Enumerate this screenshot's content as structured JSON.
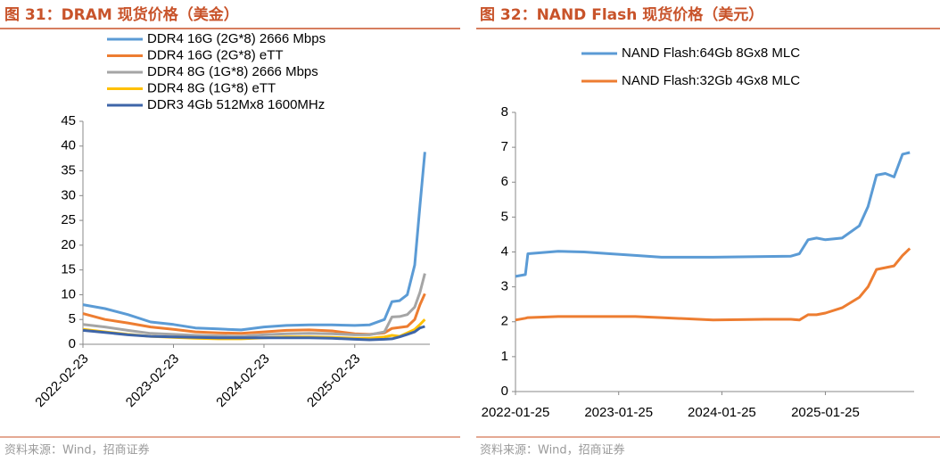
{
  "chart_data": [
    {
      "type": "line",
      "title": "图 31：DRAM 现货价格（美金）",
      "source": "资料来源：Wind，招商证券",
      "legend": "top-left",
      "x": [
        "2022-02-23",
        "2022-05-23",
        "2022-08-23",
        "2022-11-23",
        "2023-02-23",
        "2023-05-23",
        "2023-08-23",
        "2023-11-23",
        "2024-02-23",
        "2024-05-23",
        "2024-08-23",
        "2024-11-23",
        "2025-02-23",
        "2025-04-23",
        "2025-06-23",
        "2025-07-23",
        "2025-08-23",
        "2025-09-23",
        "2025-10-23",
        "2025-11-13",
        "2025-12-03"
      ],
      "series": [
        {
          "name": "DDR4 16G (2G*8) 2666 Mbps",
          "color": "#5b9bd5",
          "values": [
            8.0,
            7.2,
            6.0,
            4.5,
            4.0,
            3.3,
            3.1,
            2.9,
            3.5,
            3.8,
            3.9,
            3.9,
            3.8,
            3.9,
            5.0,
            8.6,
            8.8,
            10,
            16,
            28,
            38.8
          ]
        },
        {
          "name": "DDR4 16G (2G*8) eTT",
          "color": "#ed7d31",
          "values": [
            6.2,
            5.0,
            4.3,
            3.5,
            3.0,
            2.5,
            2.3,
            2.2,
            2.5,
            2.8,
            2.9,
            2.7,
            2.1,
            2.0,
            2.3,
            3.2,
            3.4,
            3.6,
            5.0,
            8.0,
            10.2
          ]
        },
        {
          "name": "DDR4 8G (1G*8) 2666 Mbps",
          "color": "#a5a5a5",
          "values": [
            4.0,
            3.5,
            2.8,
            2.2,
            2.0,
            1.8,
            1.7,
            1.6,
            1.9,
            2.1,
            2.2,
            2.1,
            1.9,
            1.9,
            2.5,
            5.5,
            5.6,
            6.0,
            7.5,
            10.5,
            14.3
          ]
        },
        {
          "name": "DDR4 8G (1G*8) eTT",
          "color": "#ffc000",
          "values": [
            3.0,
            2.5,
            2.0,
            1.6,
            1.4,
            1.2,
            1.1,
            1.1,
            1.3,
            1.5,
            1.5,
            1.4,
            1.2,
            1.2,
            1.5,
            1.8,
            1.6,
            2.3,
            3.0,
            4.0,
            5.0
          ]
        },
        {
          "name": "DDR3 4Gb 512Mx8 1600MHz",
          "color": "#3e65a8",
          "values": [
            2.8,
            2.4,
            1.9,
            1.6,
            1.5,
            1.4,
            1.3,
            1.3,
            1.3,
            1.3,
            1.3,
            1.2,
            1.0,
            0.9,
            1.0,
            1.1,
            1.5,
            2.0,
            2.5,
            3.3,
            3.6
          ]
        }
      ],
      "xlim": [
        "2022-02-23",
        "2025-12-23"
      ],
      "xticks": [
        "2022-02-23",
        "2023-02-23",
        "2024-02-23",
        "2025-02-23"
      ],
      "ylim": [
        0,
        45
      ],
      "yticks": [
        0,
        5,
        10,
        15,
        20,
        25,
        30,
        35,
        40,
        45
      ]
    },
    {
      "type": "line",
      "title": "图 32：NAND Flash 现货价格（美元）",
      "source": "资料来源：Wind，招商证券",
      "legend": "top",
      "x": [
        "2022-01-25",
        "2022-03-01",
        "2022-03-10",
        "2022-06-25",
        "2022-09-25",
        "2022-12-25",
        "2023-03-25",
        "2023-06-25",
        "2023-12-25",
        "2024-06-25",
        "2024-09-25",
        "2024-10-25",
        "2024-11-25",
        "2024-12-25",
        "2025-01-25",
        "2025-03-25",
        "2025-05-25",
        "2025-06-25",
        "2025-07-25",
        "2025-08-25",
        "2025-09-25",
        "2025-10-25",
        "2025-11-20"
      ],
      "series": [
        {
          "name": "NAND Flash:64Gb 8Gx8 MLC",
          "color": "#5b9bd5",
          "values": [
            3.3,
            3.35,
            3.95,
            4.02,
            4.0,
            3.95,
            3.9,
            3.85,
            3.85,
            3.87,
            3.88,
            3.95,
            4.35,
            4.4,
            4.35,
            4.4,
            4.75,
            5.3,
            6.2,
            6.25,
            6.15,
            6.8,
            6.85
          ]
        },
        {
          "name": "NAND Flash:32Gb 4Gx8 MLC",
          "color": "#ed7d31",
          "values": [
            2.05,
            2.1,
            2.12,
            2.15,
            2.15,
            2.15,
            2.15,
            2.12,
            2.05,
            2.07,
            2.07,
            2.05,
            2.2,
            2.2,
            2.25,
            2.4,
            2.7,
            3.0,
            3.5,
            3.55,
            3.6,
            3.9,
            4.1
          ]
        }
      ],
      "xlim": [
        "2022-01-25",
        "2025-12-05"
      ],
      "xticks": [
        "2022-01-25",
        "2023-01-25",
        "2024-01-25",
        "2025-01-25"
      ],
      "ylim": [
        0,
        8
      ],
      "yticks": [
        0,
        1,
        2,
        3,
        4,
        5,
        6,
        7,
        8
      ]
    }
  ]
}
